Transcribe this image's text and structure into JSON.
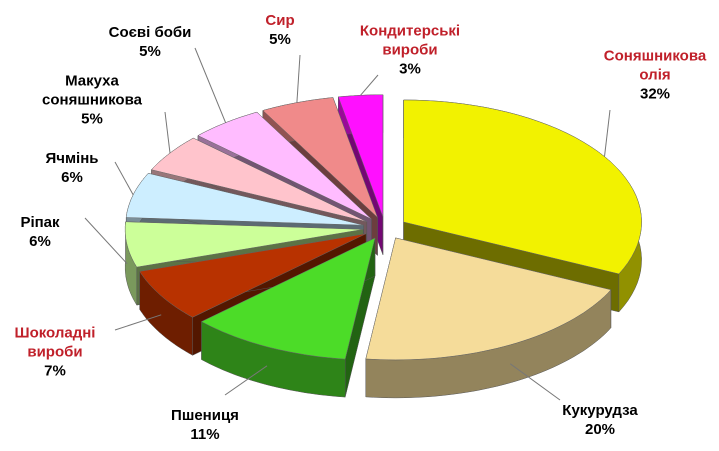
{
  "chart_data": {
    "type": "pie3d",
    "categories": [
      "Соняшникова олія",
      "Кукурудза",
      "Пшениця",
      "Шоколадні вироби",
      "Ріпак",
      "Ячмінь",
      "Макуха соняшникова",
      "Соєві боби",
      "Сир",
      "Кондитерські вироби"
    ],
    "values": [
      32,
      20,
      11,
      7,
      6,
      6,
      5,
      5,
      5,
      3
    ],
    "value_labels": [
      "32%",
      "20%",
      "11%",
      "7%",
      "6%",
      "6%",
      "5%",
      "5%",
      "5%",
      "3%"
    ],
    "colors": [
      "#f2f200",
      "#f5dc9a",
      "#4cdc28",
      "#b83200",
      "#ccff99",
      "#cdeeff",
      "#ffc4cc",
      "#ffbcff",
      "#f08a8a",
      "#ff10ff"
    ],
    "label_colors": [
      "#c0202a",
      "#000000",
      "#000000",
      "#c0202a",
      "#000000",
      "#000000",
      "#000000",
      "#000000",
      "#c0202a",
      "#c0202a"
    ]
  }
}
